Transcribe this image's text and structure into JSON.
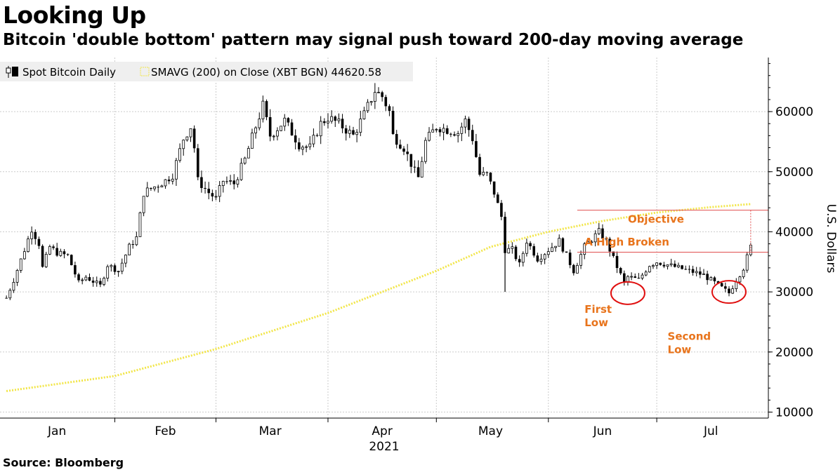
{
  "title": "Looking Up",
  "subtitle": "Bitcoin 'double bottom' pattern may signal push toward 200-day moving average",
  "source": "Source:  Bloomberg",
  "colors": {
    "candle": "#000000",
    "sma": "#f2e64a",
    "annotation": "#e8741c",
    "circle": "#e01010",
    "level_line": "#e05050",
    "grid": "#cccccc"
  },
  "chart_data": {
    "type": "candlestick",
    "legend": {
      "series_label": "Spot Bitcoin Daily",
      "sma_label": "SMAVG (200)  on Close (XBT BGN) 44620.58",
      "placement": "top-left"
    },
    "xlabel": "2021",
    "ylabel": "U.S. Dollars",
    "ylim": [
      9000,
      69000
    ],
    "yticks": [
      10000,
      20000,
      30000,
      40000,
      50000,
      60000
    ],
    "x_range": [
      "2020-12-31",
      "2021-07-27"
    ],
    "month_labels": [
      {
        "label": "Jan",
        "date": "2021-01-15"
      },
      {
        "label": "Feb",
        "date": "2021-02-14"
      },
      {
        "label": "Mar",
        "date": "2021-03-15"
      },
      {
        "label": "Apr",
        "date": "2021-04-15"
      },
      {
        "label": "May",
        "date": "2021-05-15"
      },
      {
        "label": "Jun",
        "date": "2021-06-15"
      },
      {
        "label": "Jul",
        "date": "2021-07-15"
      }
    ],
    "month_boundaries": [
      "2021-01-31",
      "2021-02-28",
      "2021-03-31",
      "2021-04-30",
      "2021-05-31",
      "2021-06-30"
    ],
    "price_path": [
      [
        "2021-01-01",
        29000
      ],
      [
        "2021-01-03",
        32000
      ],
      [
        "2021-01-06",
        37000
      ],
      [
        "2021-01-08",
        40500
      ],
      [
        "2021-01-10",
        38000
      ],
      [
        "2021-01-11",
        34000
      ],
      [
        "2021-01-13",
        37500
      ],
      [
        "2021-01-15",
        36500
      ],
      [
        "2021-01-18",
        36000
      ],
      [
        "2021-01-21",
        31500
      ],
      [
        "2021-01-23",
        32500
      ],
      [
        "2021-01-27",
        31000
      ],
      [
        "2021-01-29",
        34500
      ],
      [
        "2021-02-01",
        33500
      ],
      [
        "2021-02-04",
        37500
      ],
      [
        "2021-02-06",
        39000
      ],
      [
        "2021-02-08",
        46500
      ],
      [
        "2021-02-11",
        47500
      ],
      [
        "2021-02-14",
        48500
      ],
      [
        "2021-02-16",
        49500
      ],
      [
        "2021-02-19",
        55500
      ],
      [
        "2021-02-21",
        57500
      ],
      [
        "2021-02-22",
        54000
      ],
      [
        "2021-02-23",
        48500
      ],
      [
        "2021-02-26",
        46500
      ],
      [
        "2021-02-28",
        45500
      ],
      [
        "2021-03-02",
        48500
      ],
      [
        "2021-03-05",
        48000
      ],
      [
        "2021-03-08",
        52000
      ],
      [
        "2021-03-11",
        57500
      ],
      [
        "2021-03-13",
        61000
      ],
      [
        "2021-03-15",
        56000
      ],
      [
        "2021-03-19",
        58500
      ],
      [
        "2021-03-23",
        54500
      ],
      [
        "2021-03-26",
        54000
      ],
      [
        "2021-03-29",
        58000
      ],
      [
        "2021-03-31",
        59000
      ],
      [
        "2021-04-03",
        58000
      ],
      [
        "2021-04-07",
        56000
      ],
      [
        "2021-04-10",
        59500
      ],
      [
        "2021-04-13",
        63500
      ],
      [
        "2021-04-15",
        62500
      ],
      [
        "2021-04-17",
        60000
      ],
      [
        "2021-04-18",
        56000
      ],
      [
        "2021-04-21",
        54000
      ],
      [
        "2021-04-24",
        50000
      ],
      [
        "2021-04-25",
        49000
      ],
      [
        "2021-04-27",
        55000
      ],
      [
        "2021-04-30",
        57500
      ],
      [
        "2021-05-03",
        57000
      ],
      [
        "2021-05-06",
        56500
      ],
      [
        "2021-05-08",
        58500
      ],
      [
        "2021-05-10",
        55500
      ],
      [
        "2021-05-12",
        49500
      ],
      [
        "2021-05-14",
        49500
      ],
      [
        "2021-05-16",
        46500
      ],
      [
        "2021-05-18",
        42500
      ],
      [
        "2021-05-19",
        37000
      ],
      [
        "2021-05-21",
        37000
      ],
      [
        "2021-05-23",
        34500
      ],
      [
        "2021-05-25",
        38500
      ],
      [
        "2021-05-28",
        35500
      ],
      [
        "2021-05-31",
        37000
      ],
      [
        "2021-06-03",
        38500
      ],
      [
        "2021-06-07",
        33500
      ],
      [
        "2021-06-10",
        37500
      ],
      [
        "2021-06-14",
        40000
      ],
      [
        "2021-06-16",
        38500
      ],
      [
        "2021-06-18",
        35500
      ],
      [
        "2021-06-21",
        31500
      ],
      [
        "2021-06-22",
        32500
      ],
      [
        "2021-06-25",
        32000
      ],
      [
        "2021-06-28",
        34500
      ],
      [
        "2021-06-30",
        35000
      ],
      [
        "2021-07-03",
        34500
      ],
      [
        "2021-07-06",
        34000
      ],
      [
        "2021-07-09",
        33500
      ],
      [
        "2021-07-13",
        32800
      ],
      [
        "2021-07-16",
        31500
      ],
      [
        "2021-07-20",
        29800
      ],
      [
        "2021-07-22",
        32000
      ],
      [
        "2021-07-24",
        34000
      ],
      [
        "2021-07-26",
        37500
      ]
    ],
    "sma_path": [
      [
        "2021-01-01",
        13500
      ],
      [
        "2021-01-31",
        16000
      ],
      [
        "2021-02-28",
        20500
      ],
      [
        "2021-03-31",
        26500
      ],
      [
        "2021-04-30",
        33500
      ],
      [
        "2021-05-15",
        37500
      ],
      [
        "2021-05-31",
        40000
      ],
      [
        "2021-06-15",
        41800
      ],
      [
        "2021-06-30",
        43200
      ],
      [
        "2021-07-15",
        44100
      ],
      [
        "2021-07-26",
        44620.58
      ]
    ],
    "levels": [
      {
        "name": "objective",
        "value": 43600,
        "from": "2021-06-08"
      },
      {
        "name": "high-broken",
        "value": 36600,
        "from": "2021-06-08"
      }
    ],
    "annotations": [
      {
        "name": "objective",
        "text": "Objective",
        "date": "2021-06-22",
        "value": 41500
      },
      {
        "name": "high-broken",
        "text": "A High Broken",
        "date": "2021-06-10",
        "value": 37700
      },
      {
        "name": "first-low-1",
        "text": "First",
        "date": "2021-06-10",
        "value": 26500
      },
      {
        "name": "first-low-2",
        "text": "Low",
        "date": "2021-06-10",
        "value": 24300
      },
      {
        "name": "second-low-1",
        "text": "Second",
        "date": "2021-07-03",
        "value": 22000
      },
      {
        "name": "second-low-2",
        "text": "Low",
        "date": "2021-07-03",
        "value": 19800
      }
    ],
    "circled_lows": [
      {
        "name": "first-low",
        "date": "2021-06-22",
        "value": 29800
      },
      {
        "name": "second-low",
        "date": "2021-07-20",
        "value": 30000
      }
    ]
  }
}
